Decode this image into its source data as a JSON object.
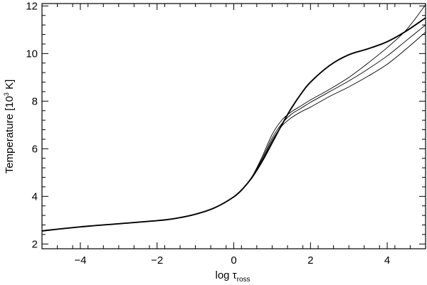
{
  "chart_data": {
    "type": "line",
    "xlabel": "log τ",
    "xlabel_main": "log τ",
    "xlabel_sub": "ross",
    "ylabel": "Temperature [10³ K]",
    "ylabel_pre": "Temperature [10",
    "ylabel_sup": "3",
    "ylabel_post": " K]",
    "xlim": [
      -5,
      5
    ],
    "ylim": [
      1.8,
      12.1
    ],
    "x_ticks": [
      -4,
      -2,
      0,
      2,
      4
    ],
    "x_tick_labels": [
      "−4",
      "−2",
      "0",
      "2",
      "4"
    ],
    "y_ticks": [
      2,
      4,
      6,
      8,
      10,
      12
    ],
    "y_tick_labels": [
      "2",
      "4",
      "6",
      "8",
      "10",
      "12"
    ],
    "x_minor_step": 0.4,
    "y_minor_step": 0.4,
    "grid": false,
    "legend": "none",
    "line_color": "#000000",
    "series": [
      {
        "thick": true,
        "x": [
          -5,
          -4,
          -3,
          -2,
          -1.5,
          -1,
          -0.5,
          0,
          0.25,
          0.5,
          0.75,
          1.0,
          1.25,
          1.5,
          1.75,
          2.0,
          2.5,
          3.0,
          3.5,
          4.0,
          4.5,
          5.0
        ],
        "y": [
          2.55,
          2.72,
          2.85,
          2.98,
          3.08,
          3.25,
          3.52,
          3.98,
          4.35,
          4.85,
          5.5,
          6.25,
          7.0,
          7.7,
          8.3,
          8.8,
          9.5,
          9.95,
          10.2,
          10.5,
          10.95,
          11.5
        ]
      },
      {
        "thick": false,
        "x": [
          -5,
          -4,
          -3,
          -2,
          -1.5,
          -1,
          -0.5,
          0,
          0.25,
          0.5,
          0.75,
          1.0,
          1.25,
          1.5,
          1.75,
          2.0,
          2.5,
          3.0,
          3.5,
          4.0,
          4.5,
          5.0
        ],
        "y": [
          2.55,
          2.72,
          2.85,
          2.98,
          3.08,
          3.25,
          3.52,
          3.98,
          4.35,
          4.9,
          5.7,
          6.6,
          7.2,
          7.55,
          7.8,
          8.05,
          8.5,
          9.0,
          9.6,
          10.25,
          11.0,
          12.05
        ]
      },
      {
        "thick": false,
        "x": [
          -5,
          -4,
          -3,
          -2,
          -1.5,
          -1,
          -0.5,
          0,
          0.25,
          0.5,
          0.75,
          1.0,
          1.25,
          1.5,
          1.75,
          2.0,
          2.5,
          3.0,
          3.5,
          4.0,
          4.5,
          5.0
        ],
        "y": [
          2.55,
          2.72,
          2.85,
          2.98,
          3.08,
          3.25,
          3.52,
          3.98,
          4.35,
          4.88,
          5.62,
          6.45,
          7.05,
          7.45,
          7.7,
          7.95,
          8.4,
          8.85,
          9.35,
          9.9,
          10.55,
          11.2
        ]
      },
      {
        "thick": false,
        "x": [
          -5,
          -4,
          -3,
          -2,
          -1.5,
          -1,
          -0.5,
          0,
          0.25,
          0.5,
          0.75,
          1.0,
          1.25,
          1.5,
          1.75,
          2.0,
          2.5,
          3.0,
          3.5,
          4.0,
          4.5,
          5.0
        ],
        "y": [
          2.55,
          2.72,
          2.85,
          2.98,
          3.08,
          3.25,
          3.52,
          3.98,
          4.35,
          4.85,
          5.55,
          6.35,
          6.95,
          7.3,
          7.55,
          7.75,
          8.2,
          8.6,
          9.05,
          9.55,
          10.2,
          10.9
        ]
      }
    ]
  }
}
